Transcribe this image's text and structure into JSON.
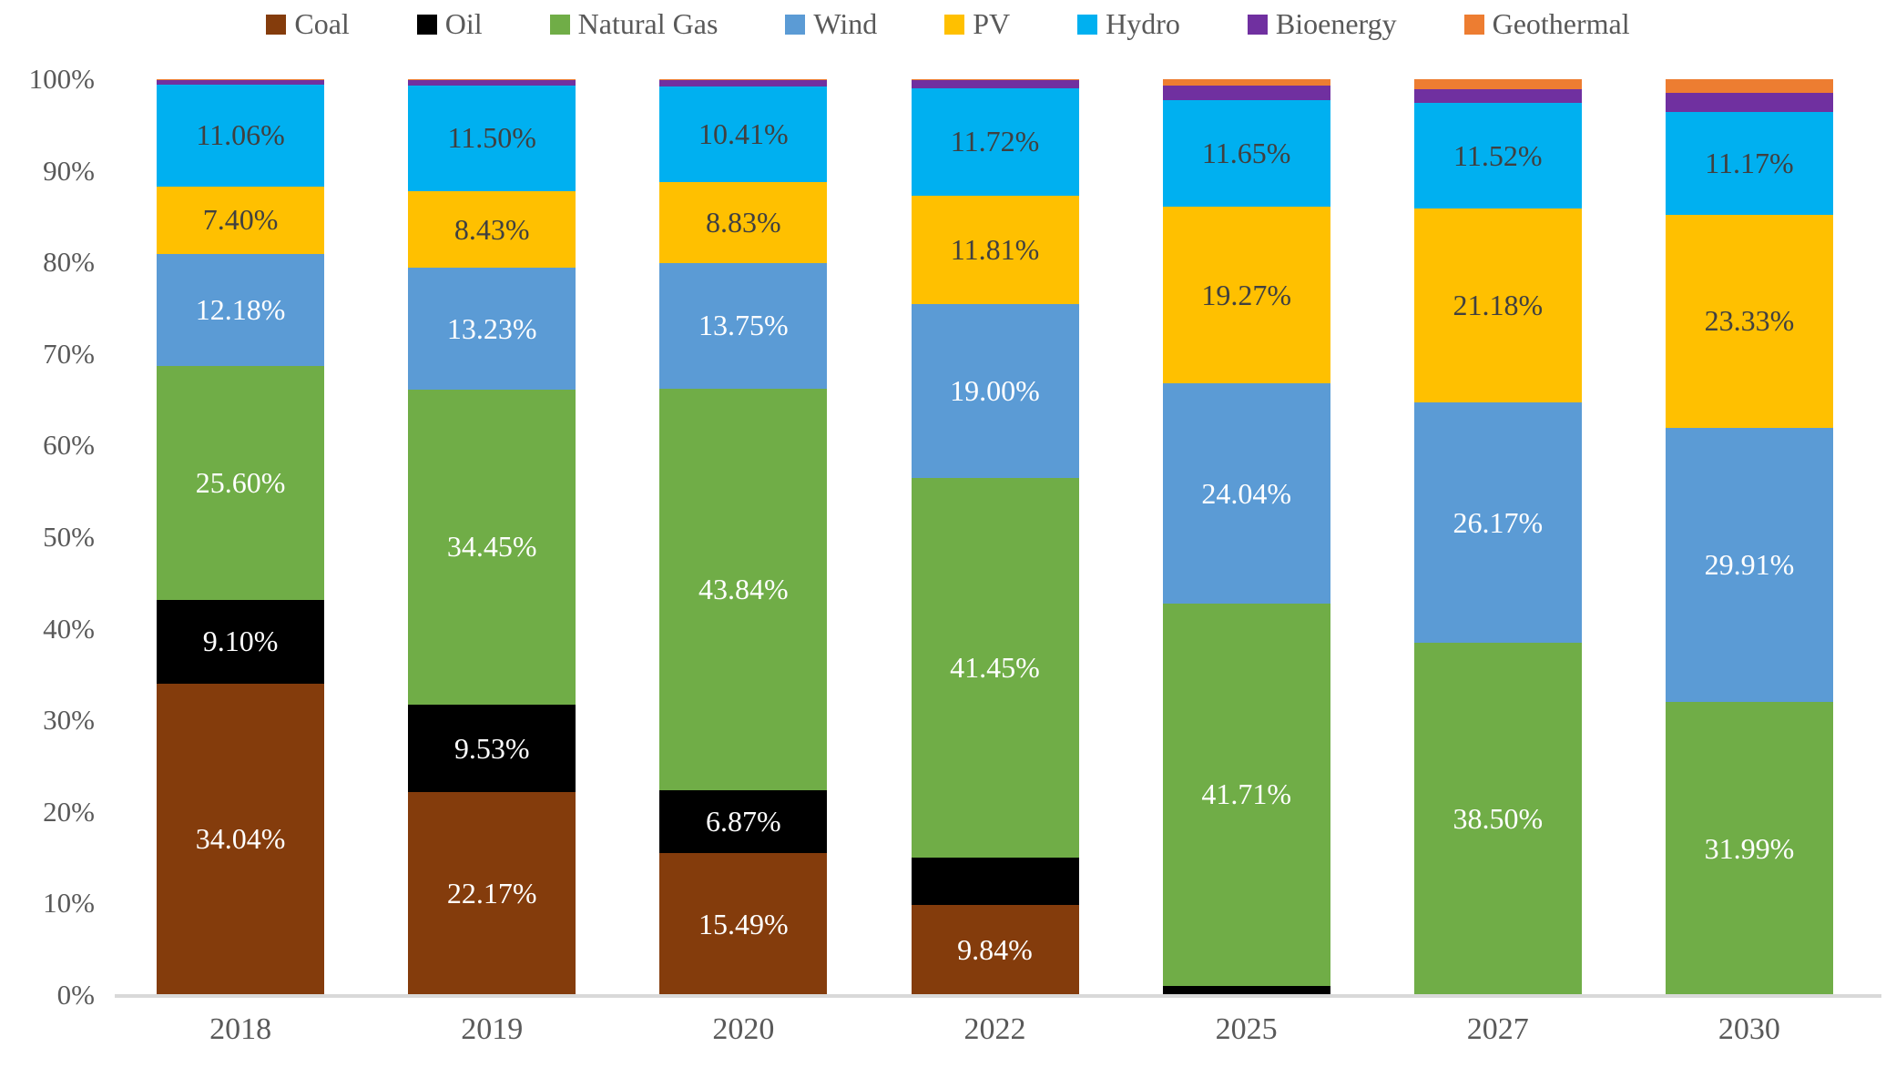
{
  "chart_data": {
    "type": "bar",
    "stacked": true,
    "percent_stacked": true,
    "title": "",
    "xlabel": "",
    "ylabel": "",
    "ylim": [
      0,
      100
    ],
    "grid": false,
    "legend_position": "top",
    "axis_text_color": "#595959",
    "axis_line_color": "#D9D9D9",
    "yticks": [
      "0%",
      "10%",
      "20%",
      "30%",
      "40%",
      "50%",
      "60%",
      "70%",
      "80%",
      "90%",
      "100%"
    ],
    "categories": [
      "2018",
      "2019",
      "2020",
      "2022",
      "2025",
      "2027",
      "2030"
    ],
    "series": [
      {
        "name": "Coal",
        "color": "#843C0C",
        "label_color": "#FFFFFF",
        "values": [
          34.04,
          22.17,
          15.49,
          9.84,
          0.13,
          0,
          0
        ],
        "data_labels": [
          "34.04%",
          "22.17%",
          "15.49%",
          "9.84%",
          null,
          null,
          null
        ]
      },
      {
        "name": "Oil",
        "color": "#000000",
        "label_color": "#FFFFFF",
        "values": [
          9.1,
          9.53,
          6.87,
          5.2,
          0.9,
          0,
          0
        ],
        "data_labels": [
          "9.10%",
          "9.53%",
          "6.87%",
          null,
          null,
          null,
          null
        ]
      },
      {
        "name": "Natural Gas",
        "color": "#70AD47",
        "label_color": "#FFFFFF",
        "values": [
          25.6,
          34.45,
          43.84,
          41.45,
          41.71,
          38.5,
          31.99
        ],
        "data_labels": [
          "25.60%",
          "34.45%",
          "43.84%",
          "41.45%",
          "41.71%",
          "38.50%",
          "31.99%"
        ]
      },
      {
        "name": "Wind",
        "color": "#5B9BD5",
        "label_color": "#FFFFFF",
        "values": [
          12.18,
          13.23,
          13.75,
          19.0,
          24.04,
          26.17,
          29.91
        ],
        "data_labels": [
          "12.18%",
          "13.23%",
          "13.75%",
          "19.00%",
          "24.04%",
          "26.17%",
          "29.91%"
        ]
      },
      {
        "name": "PV",
        "color": "#FFC000",
        "label_color": "#404040",
        "values": [
          7.4,
          8.43,
          8.83,
          11.81,
          19.27,
          21.18,
          23.33
        ],
        "data_labels": [
          "7.40%",
          "8.43%",
          "8.83%",
          "11.81%",
          "19.27%",
          "21.18%",
          "23.33%"
        ]
      },
      {
        "name": "Hydro",
        "color": "#00B0F0",
        "label_color": "#404040",
        "values": [
          11.06,
          11.5,
          10.41,
          11.72,
          11.65,
          11.52,
          11.17
        ],
        "data_labels": [
          "11.06%",
          "11.50%",
          "10.41%",
          "11.72%",
          "11.65%",
          "11.52%",
          "11.17%"
        ]
      },
      {
        "name": "Bioenergy",
        "color": "#7030A0",
        "label_color": "#FFFFFF",
        "values": [
          0.57,
          0.62,
          0.72,
          0.9,
          1.6,
          1.53,
          2.1
        ],
        "data_labels": [
          null,
          null,
          null,
          null,
          null,
          null,
          null
        ]
      },
      {
        "name": "Geothermal",
        "color": "#ED7D31",
        "label_color": "#FFFFFF",
        "values": [
          0.05,
          0.07,
          0.09,
          0.08,
          0.7,
          1.1,
          1.5
        ],
        "data_labels": [
          null,
          null,
          null,
          null,
          null,
          null,
          null
        ]
      }
    ]
  }
}
